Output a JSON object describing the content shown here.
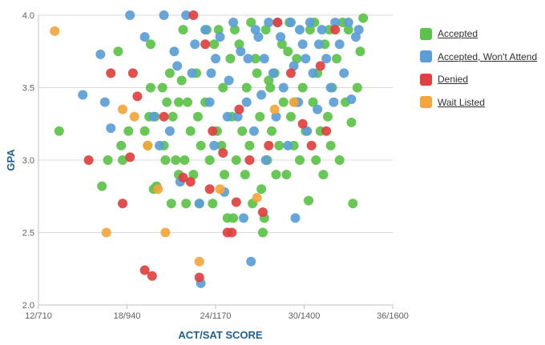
{
  "chart_data": {
    "type": "scatter",
    "xlabel": "ACT/SAT SCORE",
    "ylabel": "GPA",
    "xlim": [
      12,
      36
    ],
    "ylim": [
      2.0,
      4.0
    ],
    "xticks": [
      {
        "value": 12,
        "label": "12/710"
      },
      {
        "value": 18,
        "label": "18/940"
      },
      {
        "value": 24,
        "label": "24/1170"
      },
      {
        "value": 30,
        "label": "30/1400"
      },
      {
        "value": 36,
        "label": "36/1600"
      }
    ],
    "yticks": [
      {
        "value": 2.0,
        "label": "2.0"
      },
      {
        "value": 2.5,
        "label": "2.5"
      },
      {
        "value": 3.0,
        "label": "3.0"
      },
      {
        "value": 3.5,
        "label": "3.5"
      },
      {
        "value": 4.0,
        "label": "4.0"
      }
    ],
    "grid": true,
    "legend_position": "right",
    "series": [
      {
        "name": "Accepted",
        "color": "#5cc24a",
        "points": [
          [
            13.4,
            3.2
          ],
          [
            16.7,
            3.0
          ],
          [
            16.3,
            2.82
          ],
          [
            17.4,
            3.75
          ],
          [
            17.6,
            3.1
          ],
          [
            17.7,
            3.0
          ],
          [
            18.1,
            3.2
          ],
          [
            19.2,
            3.2
          ],
          [
            19.4,
            3.1
          ],
          [
            19.5,
            3.3
          ],
          [
            19.6,
            3.5
          ],
          [
            19.6,
            3.8
          ],
          [
            19.8,
            2.8
          ],
          [
            20.0,
            2.82
          ],
          [
            20.4,
            3.5
          ],
          [
            20.5,
            3.1
          ],
          [
            20.6,
            3.0
          ],
          [
            20.9,
            3.6
          ],
          [
            21.0,
            2.7
          ],
          [
            21.1,
            3.3
          ],
          [
            21.3,
            3.0
          ],
          [
            21.5,
            2.9
          ],
          [
            21.5,
            3.4
          ],
          [
            21.8,
            3.9
          ],
          [
            21.9,
            3.0
          ],
          [
            22.0,
            2.7
          ],
          [
            22.3,
            3.2
          ],
          [
            22.5,
            2.9
          ],
          [
            22.7,
            3.6
          ],
          [
            22.9,
            2.7
          ],
          [
            23.0,
            3.1
          ],
          [
            23.3,
            3.4
          ],
          [
            23.4,
            3.9
          ],
          [
            23.6,
            3.0
          ],
          [
            23.8,
            2.7
          ],
          [
            24.1,
            3.2
          ],
          [
            24.4,
            3.1
          ],
          [
            24.5,
            3.5
          ],
          [
            24.6,
            2.9
          ],
          [
            24.8,
            2.6
          ],
          [
            25.0,
            3.7
          ],
          [
            25.1,
            3.3
          ],
          [
            25.2,
            2.6
          ],
          [
            25.4,
            3.0
          ],
          [
            25.6,
            3.8
          ],
          [
            25.8,
            3.2
          ],
          [
            26.0,
            2.9
          ],
          [
            26.1,
            3.5
          ],
          [
            26.3,
            3.1
          ],
          [
            26.5,
            2.7
          ],
          [
            26.7,
            3.7
          ],
          [
            27.0,
            3.3
          ],
          [
            27.1,
            2.8
          ],
          [
            27.2,
            2.5
          ],
          [
            27.3,
            2.6
          ],
          [
            27.4,
            3.9
          ],
          [
            27.5,
            3.0
          ],
          [
            27.6,
            3.55
          ],
          [
            27.8,
            3.2
          ],
          [
            28.0,
            3.6
          ],
          [
            28.1,
            2.9
          ],
          [
            28.3,
            3.1
          ],
          [
            28.5,
            3.8
          ],
          [
            28.6,
            3.4
          ],
          [
            28.8,
            2.9
          ],
          [
            29.0,
            3.95
          ],
          [
            29.1,
            3.3
          ],
          [
            29.3,
            3.1
          ],
          [
            29.5,
            3.7
          ],
          [
            29.7,
            3.0
          ],
          [
            29.9,
            3.5
          ],
          [
            30.1,
            3.2
          ],
          [
            30.3,
            2.72
          ],
          [
            30.4,
            3.9
          ],
          [
            30.6,
            3.4
          ],
          [
            30.8,
            3.0
          ],
          [
            30.9,
            3.6
          ],
          [
            31.1,
            3.2
          ],
          [
            31.3,
            2.9
          ],
          [
            31.4,
            3.8
          ],
          [
            31.6,
            3.3
          ],
          [
            31.8,
            3.1
          ],
          [
            31.9,
            3.5
          ],
          [
            32.2,
            3.7
          ],
          [
            32.4,
            3.0
          ],
          [
            32.6,
            3.95
          ],
          [
            32.8,
            3.4
          ],
          [
            33.0,
            3.9
          ],
          [
            33.2,
            3.26
          ],
          [
            33.3,
            2.7
          ],
          [
            33.6,
            3.5
          ],
          [
            33.8,
            3.75
          ],
          [
            34.0,
            3.98
          ],
          [
            22.1,
            3.4
          ],
          [
            23.9,
            3.8
          ],
          [
            25.3,
            3.9
          ],
          [
            26.8,
            3.6
          ],
          [
            21.7,
            3.55
          ],
          [
            20.7,
            3.4
          ],
          [
            24.2,
            3.9
          ],
          [
            26.4,
            3.95
          ],
          [
            28.9,
            3.75
          ],
          [
            30.7,
            3.95
          ],
          [
            22.8,
            3.3
          ],
          [
            19.9,
            3.3
          ],
          [
            31.7,
            3.9
          ],
          [
            27.7,
            3.5
          ],
          [
            29.4,
            3.4
          ]
        ]
      },
      {
        "name": "Accepted, Won't Attend",
        "color": "#5b9ed6",
        "points": [
          [
            15.0,
            3.45
          ],
          [
            16.2,
            3.73
          ],
          [
            16.9,
            3.22
          ],
          [
            16.5,
            3.4
          ],
          [
            18.2,
            4.0
          ],
          [
            19.2,
            3.85
          ],
          [
            19.8,
            3.3
          ],
          [
            20.5,
            4.0
          ],
          [
            20.9,
            3.2
          ],
          [
            21.2,
            3.75
          ],
          [
            21.6,
            2.85
          ],
          [
            22.0,
            4.0
          ],
          [
            22.4,
            3.6
          ],
          [
            22.9,
            2.7
          ],
          [
            23.0,
            2.15
          ],
          [
            23.3,
            3.9
          ],
          [
            23.6,
            3.4
          ],
          [
            23.9,
            3.1
          ],
          [
            24.3,
            3.85
          ],
          [
            24.6,
            2.78
          ],
          [
            24.9,
            3.55
          ],
          [
            25.2,
            3.95
          ],
          [
            25.5,
            3.3
          ],
          [
            25.9,
            2.6
          ],
          [
            26.2,
            3.7
          ],
          [
            26.4,
            2.3
          ],
          [
            26.6,
            3.2
          ],
          [
            26.9,
            3.85
          ],
          [
            27.1,
            3.45
          ],
          [
            27.4,
            3.0
          ],
          [
            27.6,
            3.95
          ],
          [
            27.9,
            3.6
          ],
          [
            28.1,
            3.3
          ],
          [
            28.4,
            3.85
          ],
          [
            28.6,
            3.5
          ],
          [
            28.9,
            3.1
          ],
          [
            29.1,
            3.95
          ],
          [
            29.3,
            3.65
          ],
          [
            29.4,
            2.6
          ],
          [
            29.6,
            3.4
          ],
          [
            29.9,
            3.8
          ],
          [
            30.2,
            3.2
          ],
          [
            30.4,
            3.95
          ],
          [
            30.6,
            3.6
          ],
          [
            30.9,
            3.35
          ],
          [
            31.2,
            3.9
          ],
          [
            31.5,
            3.7
          ],
          [
            31.8,
            3.5
          ],
          [
            32.1,
            3.95
          ],
          [
            32.4,
            3.8
          ],
          [
            32.7,
            3.6
          ],
          [
            33.0,
            3.95
          ],
          [
            33.2,
            3.42
          ],
          [
            33.5,
            3.85
          ],
          [
            33.7,
            3.9
          ],
          [
            24.0,
            3.7
          ],
          [
            25.7,
            3.75
          ],
          [
            26.7,
            3.9
          ],
          [
            27.3,
            3.7
          ],
          [
            28.2,
            3.95
          ],
          [
            29.7,
            3.9
          ],
          [
            30.1,
            3.7
          ],
          [
            31.0,
            3.8
          ],
          [
            32.0,
            3.4
          ],
          [
            24.8,
            3.3
          ],
          [
            26.1,
            3.4
          ],
          [
            22.6,
            3.8
          ],
          [
            23.7,
            3.6
          ],
          [
            21.4,
            3.65
          ],
          [
            20.2,
            3.1
          ]
        ]
      },
      {
        "name": "Denied",
        "color": "#e04040",
        "points": [
          [
            15.4,
            3.0
          ],
          [
            16.9,
            3.6
          ],
          [
            17.7,
            2.7
          ],
          [
            18.2,
            3.02
          ],
          [
            18.4,
            3.6
          ],
          [
            18.7,
            3.44
          ],
          [
            19.2,
            2.24
          ],
          [
            19.7,
            2.2
          ],
          [
            20.5,
            3.3
          ],
          [
            21.8,
            2.88
          ],
          [
            22.3,
            2.85
          ],
          [
            22.5,
            4.0
          ],
          [
            22.9,
            2.19
          ],
          [
            23.3,
            3.8
          ],
          [
            23.6,
            2.8
          ],
          [
            23.8,
            3.2
          ],
          [
            24.5,
            3.05
          ],
          [
            24.8,
            2.5
          ],
          [
            25.1,
            2.5
          ],
          [
            25.4,
            2.71
          ],
          [
            25.6,
            3.35
          ],
          [
            26.3,
            3.0
          ],
          [
            27.2,
            2.64
          ],
          [
            27.6,
            3.1
          ],
          [
            28.2,
            3.95
          ],
          [
            29.1,
            3.6
          ],
          [
            29.9,
            3.25
          ],
          [
            30.5,
            3.1
          ],
          [
            31.1,
            3.65
          ],
          [
            31.5,
            3.2
          ],
          [
            32.1,
            3.9
          ]
        ]
      },
      {
        "name": "Wait Listed",
        "color": "#f2a63b",
        "points": [
          [
            13.1,
            3.89
          ],
          [
            16.6,
            2.5
          ],
          [
            17.7,
            3.35
          ],
          [
            18.5,
            3.3
          ],
          [
            19.4,
            3.1
          ],
          [
            20.1,
            2.8
          ],
          [
            20.6,
            2.5
          ],
          [
            22.9,
            2.3
          ],
          [
            24.3,
            2.8
          ],
          [
            26.8,
            2.74
          ],
          [
            28.0,
            3.35
          ],
          [
            29.3,
            3.4
          ]
        ]
      }
    ]
  }
}
